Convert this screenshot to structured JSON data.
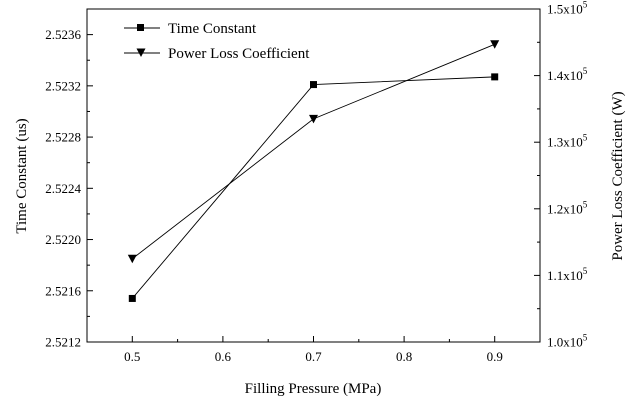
{
  "chart_data": {
    "type": "line",
    "xlabel": "Filling Pressure (MPa)",
    "ylabel_left": "Time Constant (us)",
    "ylabel_right": "Power Loss Coefficient (W)",
    "x": [
      0.5,
      0.7,
      0.9
    ],
    "xlim": [
      0.45,
      0.95
    ],
    "x_ticks": [
      0.5,
      0.6,
      0.7,
      0.8,
      0.9
    ],
    "x_tick_labels": [
      "0.5",
      "0.6",
      "0.7",
      "0.8",
      "0.9"
    ],
    "ylim_left": [
      2.5212,
      2.5238
    ],
    "y_left_ticks": [
      2.5212,
      2.5216,
      2.522,
      2.5224,
      2.5228,
      2.5232,
      2.5236
    ],
    "y_left_tick_labels": [
      "2.5212",
      "2.5216",
      "2.5220",
      "2.5224",
      "2.5228",
      "2.5232",
      "2.5236"
    ],
    "ylim_right": [
      100000,
      150000
    ],
    "y_right_ticks": [
      100000,
      110000,
      120000,
      130000,
      140000,
      150000
    ],
    "y_right_tick_mantissas": [
      "1.0x10",
      "1.1x10",
      "1.2x10",
      "1.3x10",
      "1.4x10",
      "1.5x10"
    ],
    "y_right_tick_exponent": "5",
    "series": [
      {
        "name": "Time Constant",
        "axis": "left",
        "marker": "square",
        "values": [
          2.52154,
          2.52321,
          2.52327
        ]
      },
      {
        "name": "Power Loss Coefficient",
        "axis": "right",
        "marker": "triangle-down",
        "values": [
          112500,
          133500,
          144700
        ]
      }
    ],
    "legend_position": "top-left",
    "grid": false
  }
}
